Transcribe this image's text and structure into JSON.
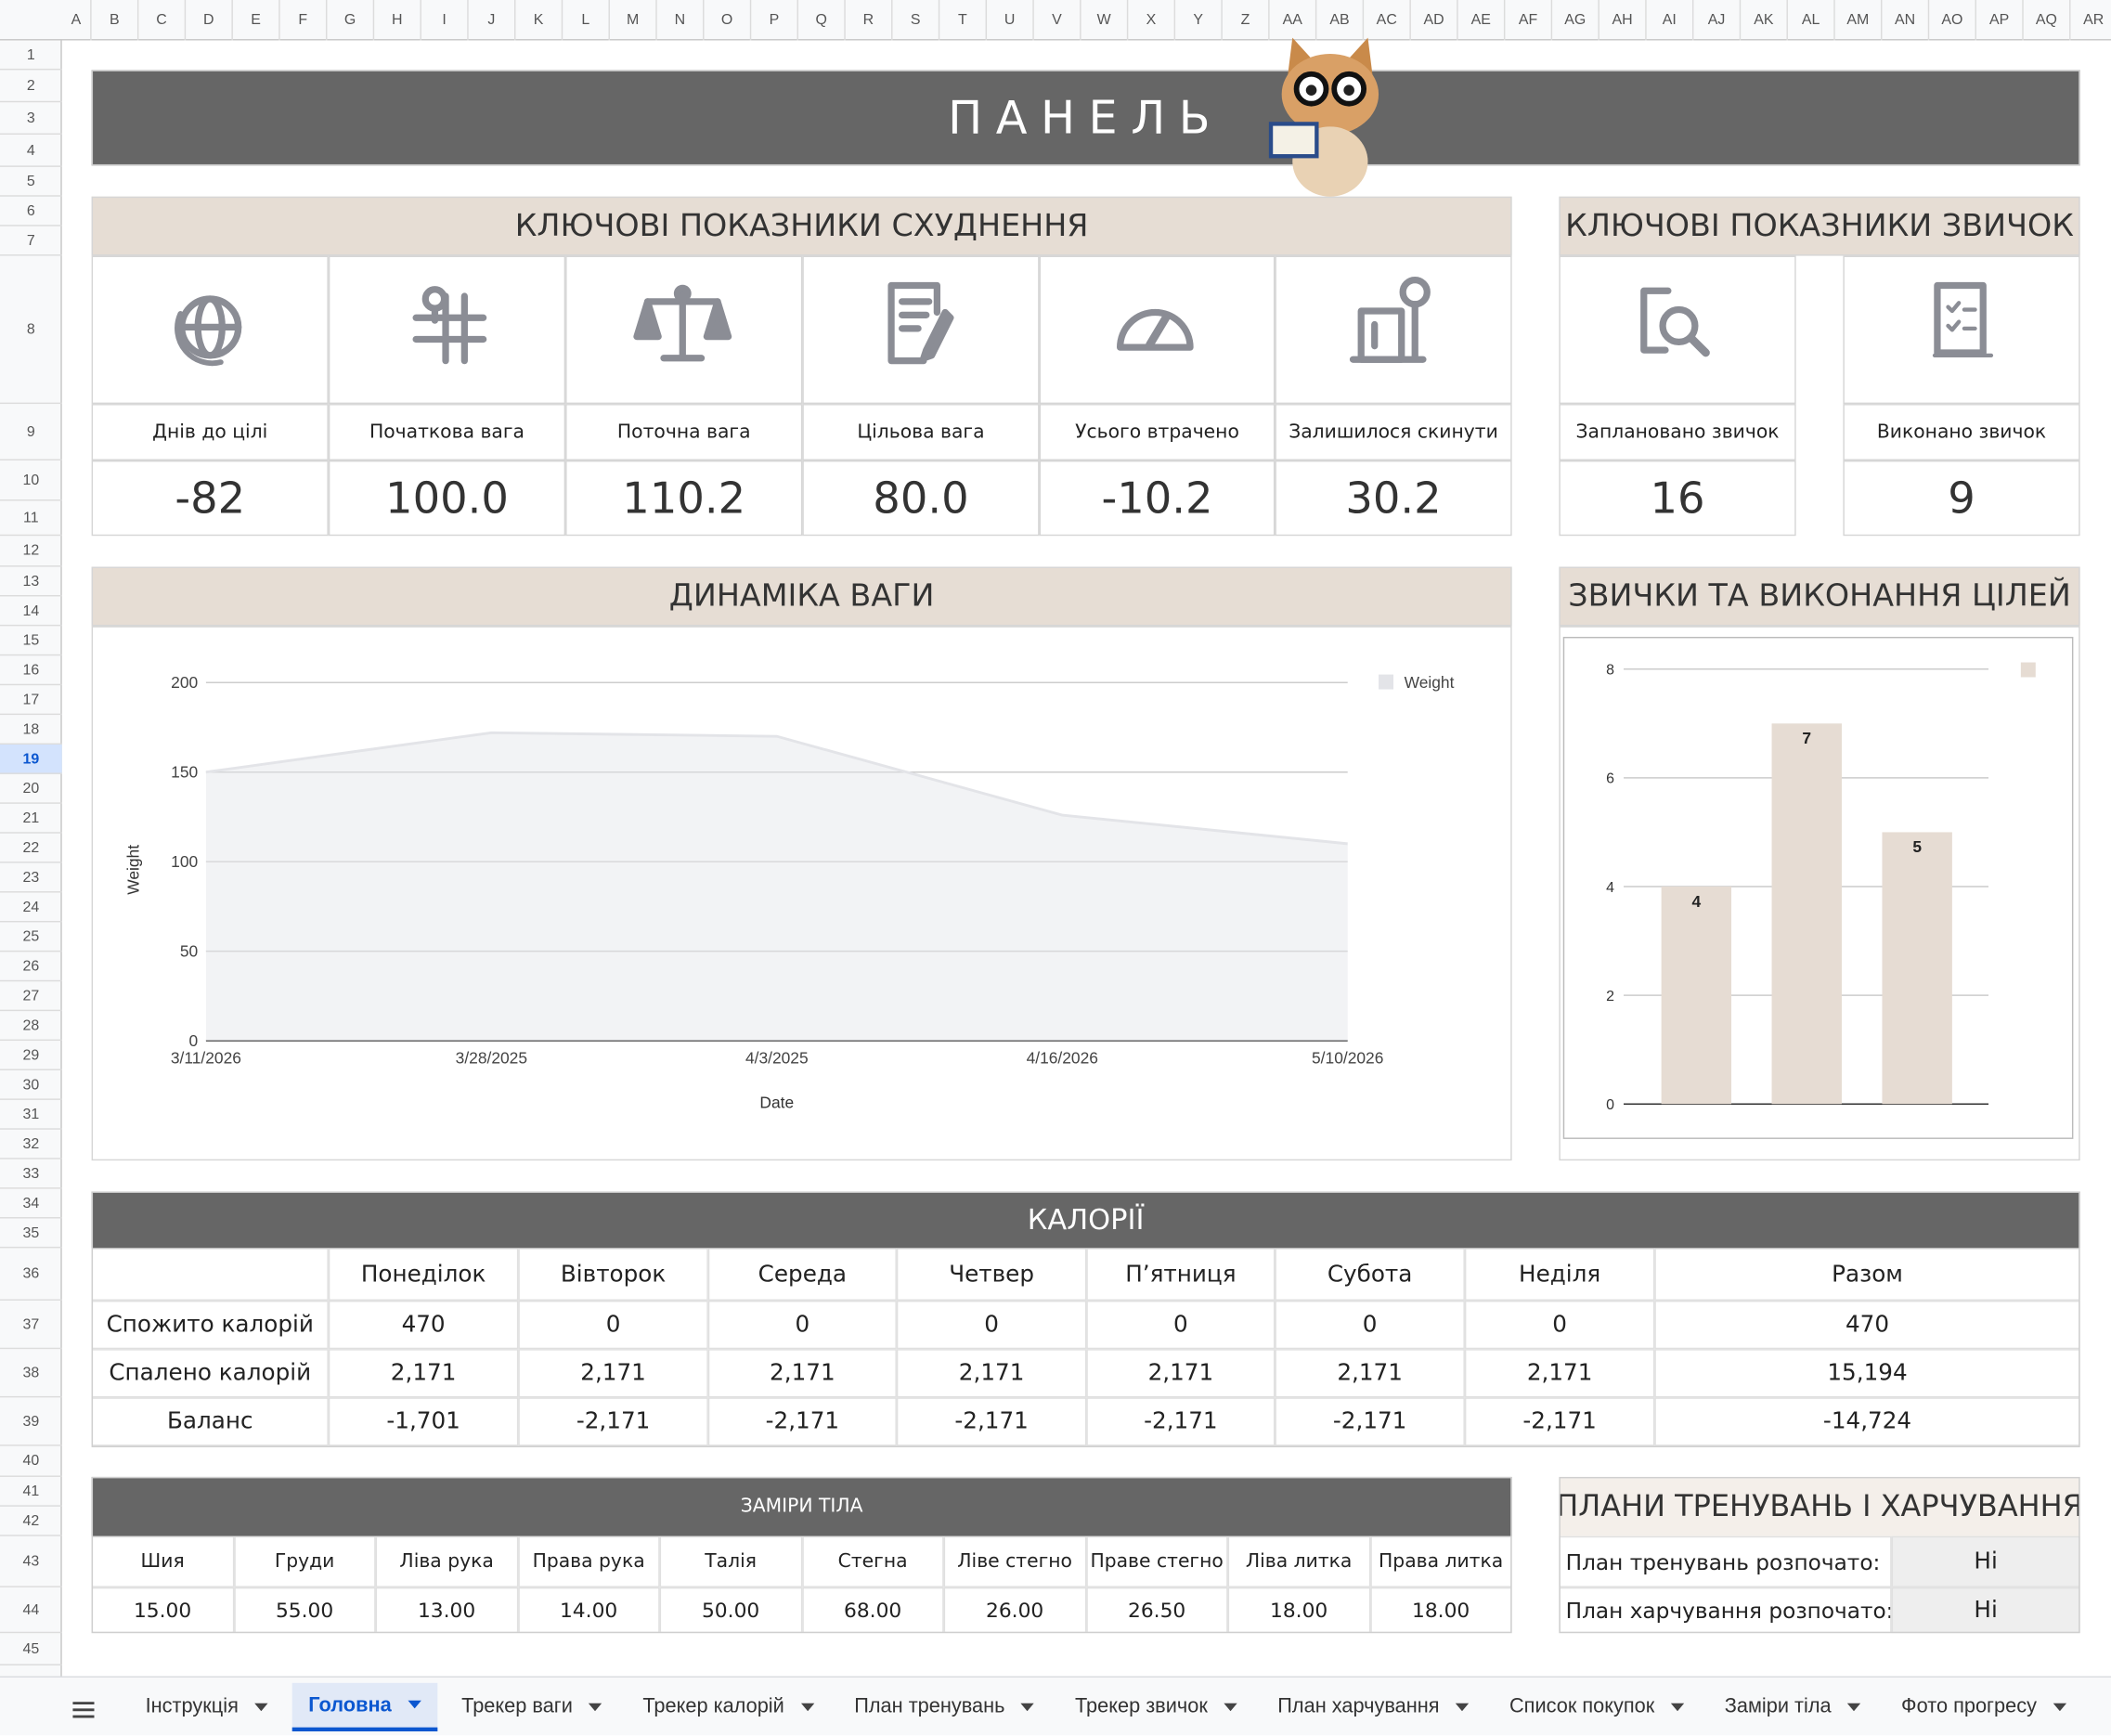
{
  "sheet": {
    "columns": [
      "A",
      "B",
      "C",
      "D",
      "E",
      "F",
      "G",
      "H",
      "I",
      "J",
      "K",
      "L",
      "M",
      "N",
      "O",
      "P",
      "Q",
      "R",
      "S",
      "T",
      "U",
      "V",
      "W",
      "X",
      "Y",
      "Z",
      "AA",
      "AB",
      "AC",
      "AD",
      "AE",
      "AF",
      "AG",
      "AH",
      "AI",
      "AJ",
      "AK",
      "AL",
      "AM",
      "AN",
      "AO",
      "AP",
      "AQ",
      "AR"
    ],
    "rows": [
      1,
      2,
      3,
      4,
      5,
      6,
      7,
      8,
      9,
      10,
      11,
      12,
      13,
      14,
      15,
      16,
      17,
      18,
      19,
      20,
      21,
      22,
      23,
      24,
      25,
      26,
      27,
      28,
      29,
      30,
      31,
      32,
      33,
      34,
      35,
      36,
      37,
      38,
      39,
      40,
      41,
      42,
      43,
      44,
      45
    ]
  },
  "title": "ПАНЕЛЬ",
  "weight_kpis": {
    "header": "КЛЮЧОВІ ПОКАЗНИКИ СХУДНЕННЯ",
    "items": [
      {
        "label": "Днів до цілі",
        "value": "-82"
      },
      {
        "label": "Початкова вага",
        "value": "100.0"
      },
      {
        "label": "Поточна вага",
        "value": "110.2"
      },
      {
        "label": "Цільова вага",
        "value": "80.0"
      },
      {
        "label": "Усього втрачено",
        "value": "-10.2"
      },
      {
        "label": "Залишилося скинути",
        "value": "30.2"
      }
    ]
  },
  "habit_kpis": {
    "header": "КЛЮЧОВІ ПОКАЗНИКИ ЗВИЧОК",
    "items": [
      {
        "label": "Заплановано звичок",
        "value": "16"
      },
      {
        "label": "Виконано звичок",
        "value": "9"
      }
    ]
  },
  "weight_section": "ДИНАМІКА ВАГИ",
  "habits_section": "ЗВИЧКИ ТА ВИКОНАННЯ ЦІЛЕЙ",
  "chart_data": [
    {
      "type": "area",
      "categories": [
        "3/11/2026",
        "3/28/2025",
        "4/3/2025",
        "4/16/2026",
        "5/10/2026"
      ],
      "x_label": "Date",
      "y_label": "Weight",
      "ylim": [
        0,
        200
      ],
      "yticks": [
        0,
        50,
        100,
        150,
        200
      ],
      "grid": true,
      "legend": "top-right",
      "series": [
        {
          "name": "Weight",
          "color": "#e3e4e8",
          "values": [
            150,
            172,
            170,
            126,
            110
          ]
        }
      ]
    },
    {
      "type": "bar",
      "categories": [
        null,
        null,
        null
      ],
      "values": [
        4,
        7,
        5
      ],
      "color": "#e6dcd3",
      "ylim": [
        0,
        8
      ],
      "yticks": [
        0,
        2,
        4,
        6,
        8
      ],
      "grid": true,
      "legend": "top-right"
    }
  ],
  "calories": {
    "header": "КАЛОРІЇ",
    "columns": [
      "Понеділок",
      "Вівторок",
      "Середа",
      "Четвер",
      "П’ятниця",
      "Субота",
      "Неділя",
      "Разом"
    ],
    "rows": [
      {
        "label": "Спожито калорій",
        "values": [
          "470",
          "0",
          "0",
          "0",
          "0",
          "0",
          "0",
          "470"
        ]
      },
      {
        "label": "Спалено калорій",
        "values": [
          "2,171",
          "2,171",
          "2,171",
          "2,171",
          "2,171",
          "2,171",
          "2,171",
          "15,194"
        ]
      },
      {
        "label": "Баланс",
        "values": [
          "-1,701",
          "-2,171",
          "-2,171",
          "-2,171",
          "-2,171",
          "-2,171",
          "-2,171",
          "-14,724"
        ]
      }
    ]
  },
  "body_measurements": {
    "header": "ЗАМІРИ ТІЛА",
    "columns": [
      "Шия",
      "Груди",
      "Ліва рука",
      "Права рука",
      "Талія",
      "Стегна",
      "Ліве стегно",
      "Праве стегно",
      "Ліва литка",
      "Права литка"
    ],
    "values": [
      "15.00",
      "55.00",
      "13.00",
      "14.00",
      "50.00",
      "68.00",
      "26.00",
      "26.50",
      "18.00",
      "18.00"
    ]
  },
  "plans": {
    "header": "ПЛАНИ ТРЕНУВАНЬ І ХАРЧУВАННЯ",
    "rows": [
      {
        "label": "План тренувань розпочато:",
        "value": "Ні"
      },
      {
        "label": "План харчування розпочато:",
        "value": "Ні"
      }
    ]
  },
  "tabs": {
    "items": [
      "Інструкція",
      "Головна",
      "Трекер ваги",
      "Трекер калорій",
      "План тренувань",
      "Трекер звичок",
      "План харчування",
      "Список покупок",
      "Заміри тіла",
      "Фото прогресу"
    ],
    "active": 1
  }
}
